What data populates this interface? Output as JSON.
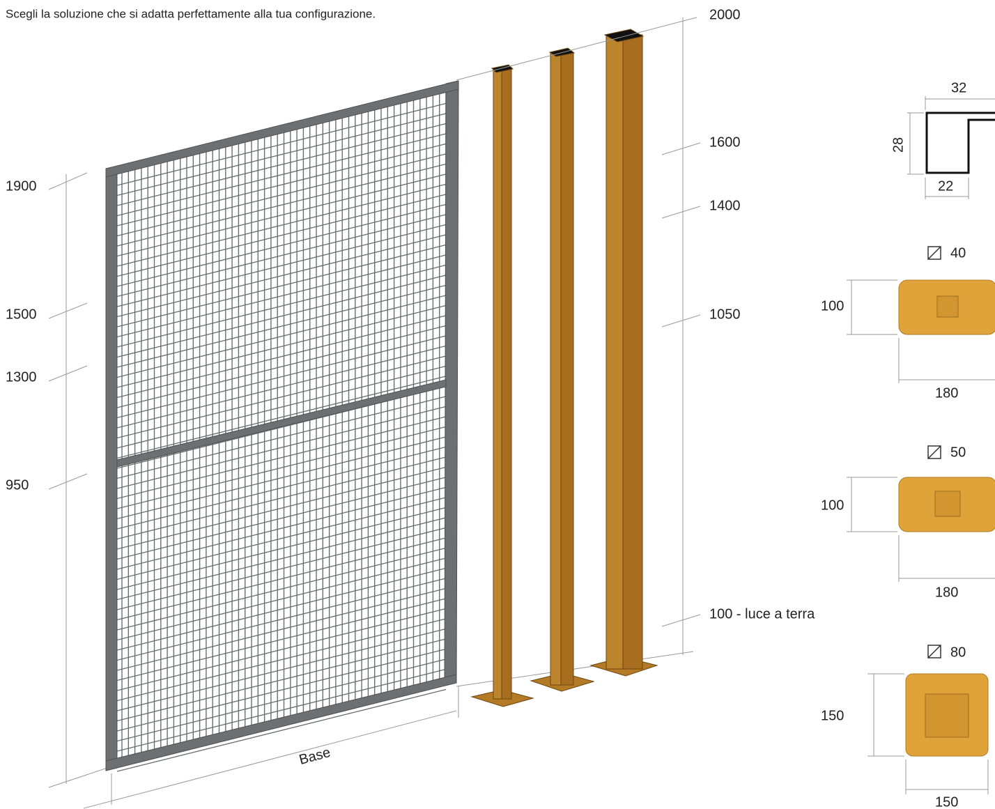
{
  "header": {
    "text": "Scegli la soluzione che si adatta perfettamente alla tua configurazione."
  },
  "panel_dimensions": {
    "heights": [
      1900,
      1500,
      1300,
      950
    ],
    "base": "Base"
  },
  "post_dimensions": {
    "heights": [
      2000,
      1600,
      1400,
      1050,
      "100 - luce a terra"
    ]
  },
  "profile": {
    "width_top": 32,
    "height": 28,
    "width_bottom": 22
  },
  "base_plates": [
    {
      "size": 40,
      "height": 100,
      "width": 180
    },
    {
      "size": 50,
      "height": 100,
      "width": 180
    },
    {
      "size": 80,
      "height": 150,
      "width": 150
    }
  ]
}
